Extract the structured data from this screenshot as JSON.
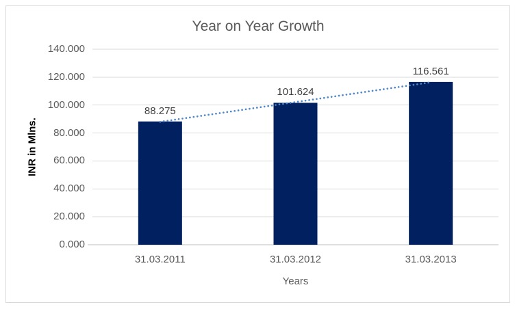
{
  "window": {
    "background": "#FFFFFF",
    "border_color": "#D9D9D9"
  },
  "chart_data": {
    "type": "bar",
    "title": "Year on Year Growth",
    "categories": [
      "31.03.2011",
      "31.03.2012",
      "31.03.2013"
    ],
    "values": [
      88.275,
      101.624,
      116.561
    ],
    "data_labels": [
      "88.275",
      "101.624",
      "116.561"
    ],
    "xlabel": "Years",
    "ylabel": "INR in Mlns.",
    "ylim": [
      0,
      140
    ],
    "ytick_step": 20,
    "ytick_labels": [
      "0.000",
      "20.000",
      "40.000",
      "60.000",
      "80.000",
      "100.000",
      "120.000",
      "140.000"
    ],
    "grid": true,
    "legend": "none",
    "trendline": {
      "type": "linear",
      "style": "dotted"
    },
    "colors": {
      "bar": "#002060",
      "trendline": "#4E86C8",
      "gridline": "#D9D9D9",
      "axis_line": "#BFBFBF",
      "tick_label": "#595959",
      "title": "#595959",
      "axis_title_y": "#000000",
      "axis_title_x": "#595959",
      "data_label": "#404040",
      "border": "#D9D9D9"
    }
  }
}
